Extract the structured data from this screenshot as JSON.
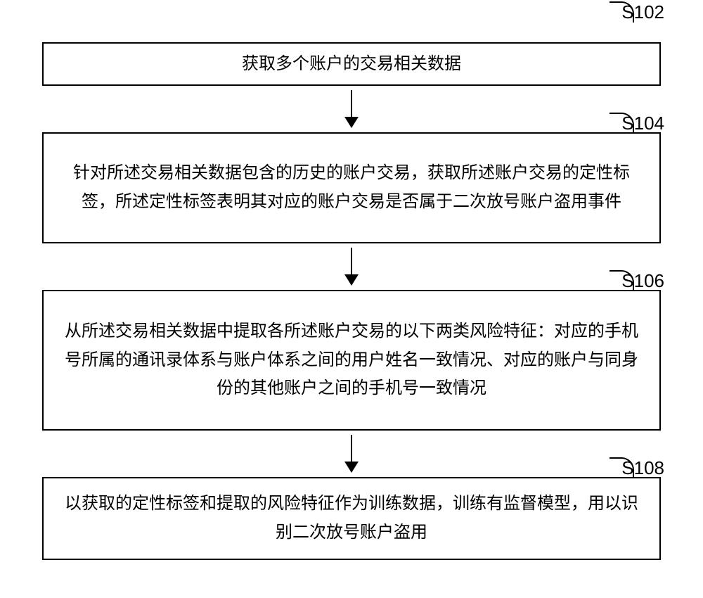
{
  "flowchart": {
    "type": "flowchart",
    "background_color": "#ffffff",
    "border_color": "#000000",
    "border_width": 2.5,
    "text_color": "#000000",
    "font_size": 24,
    "label_font_size": 26,
    "arrow_color": "#000000",
    "steps": [
      {
        "id": "S102",
        "text": "获取多个账户的交易相关数据",
        "arrow_height": 38
      },
      {
        "id": "S104",
        "text": "针对所述交易相关数据包含的历史的账户交易，获取所述账户交易的定性标签，所述定性标签表明其对应的账户交易是否属于二次放号账户盗用事件",
        "arrow_height": 38
      },
      {
        "id": "S106",
        "text": "从所述交易相关数据中提取各所述账户交易的以下两类风险特征：对应的手机号所属的通讯录体系与账户体系之间的用户姓名一致情况、对应的账户与同身份的其他账户之间的手机号一致情况",
        "arrow_height": 38
      },
      {
        "id": "S108",
        "text": "以获取的定性标签和提取的风险特征作为训练数据，训练有监督模型，用以识别二次放号账户盗用",
        "arrow_height": 0
      }
    ]
  }
}
